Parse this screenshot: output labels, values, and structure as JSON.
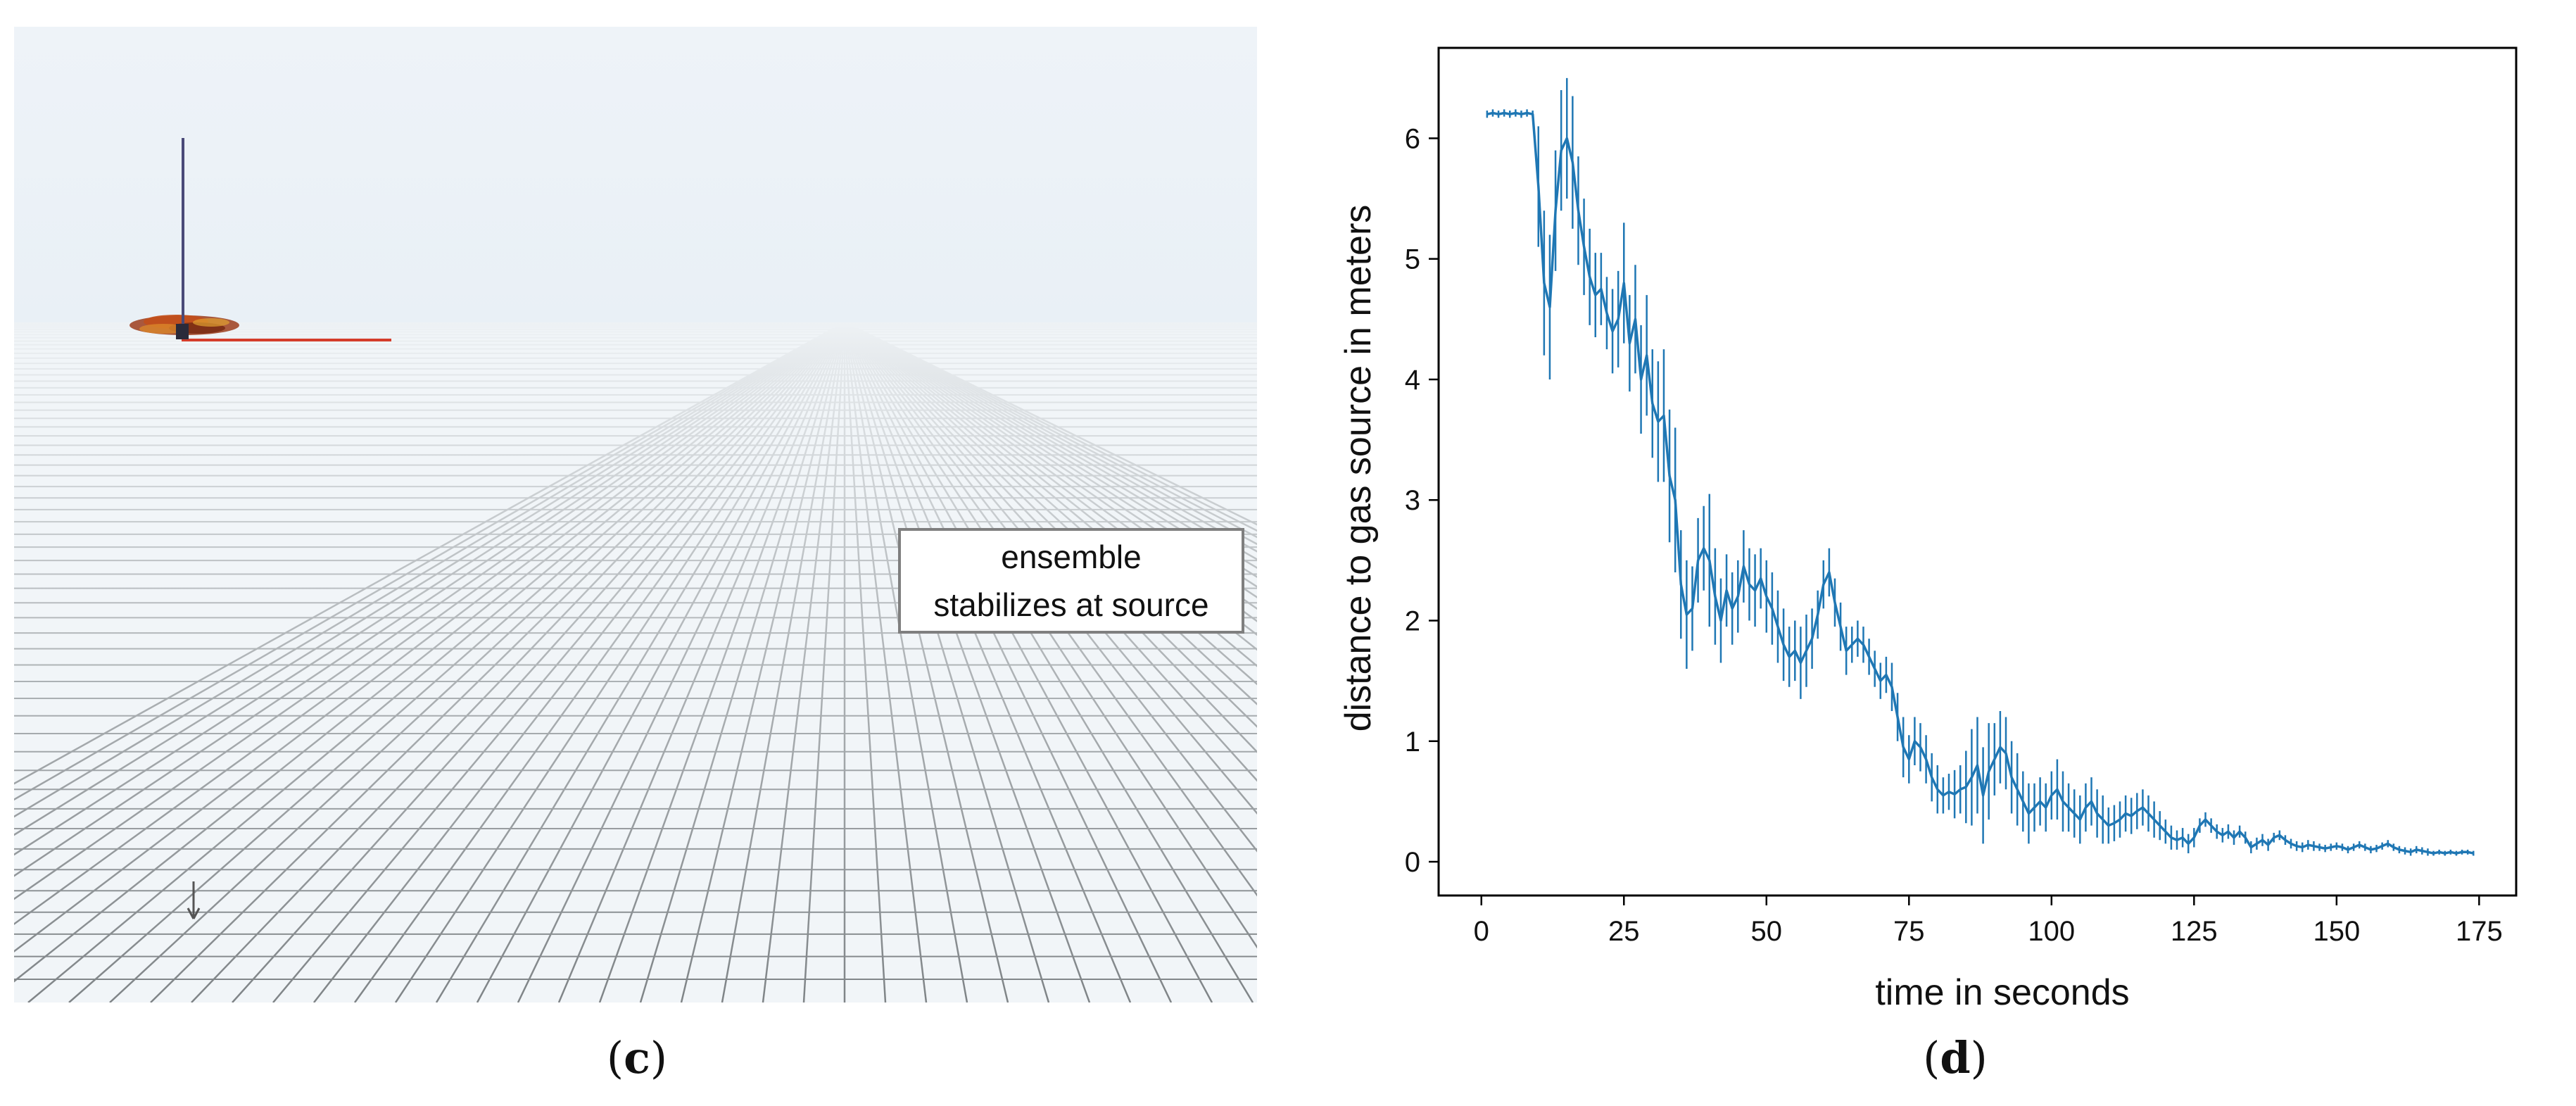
{
  "panel_c": {
    "label_open": "(",
    "label_letter": "c",
    "label_close": ")",
    "annotation_lines": [
      "ensemble",
      "stabilizes at source"
    ],
    "colors": {
      "sky": "#eef3f8",
      "floor": "#f1f5f8",
      "grid": "#7f8487",
      "pole": "#4a4a78",
      "axis_red": "#d43c2a",
      "swarm": "#b0401a"
    }
  },
  "panel_d": {
    "label_open": "(",
    "label_letter": "d",
    "label_close": ")"
  },
  "chart_data": {
    "type": "line",
    "title": "",
    "xlabel": "time in seconds",
    "ylabel": "distance to gas source in meters",
    "xlim": [
      -7.5,
      181.5
    ],
    "ylim": [
      -0.28,
      6.75
    ],
    "xticks": [
      0,
      25,
      50,
      75,
      100,
      125,
      150,
      175
    ],
    "yticks": [
      0,
      1,
      2,
      3,
      4,
      5,
      6
    ],
    "grid": false,
    "legend": "none",
    "error_bars": true,
    "color": "#1f77b4",
    "series": [
      {
        "x": [
          1,
          2,
          3,
          4,
          5,
          6,
          7,
          8,
          9,
          10,
          11,
          12,
          13,
          14,
          15,
          16,
          17,
          18,
          19,
          20,
          21,
          22,
          23,
          24,
          25,
          26,
          27,
          28,
          29,
          30,
          31,
          32,
          33,
          34,
          35,
          36,
          37,
          38,
          39,
          40,
          41,
          42,
          43,
          44,
          45,
          46,
          47,
          48,
          49,
          50,
          51,
          52,
          53,
          54,
          55,
          56,
          57,
          58,
          59,
          60,
          61,
          62,
          63,
          64,
          65,
          66,
          67,
          68,
          69,
          70,
          71,
          72,
          73,
          74,
          75,
          76,
          77,
          78,
          79,
          80,
          81,
          82,
          83,
          84,
          85,
          86,
          87,
          88,
          89,
          90,
          91,
          92,
          93,
          94,
          95,
          96,
          97,
          98,
          99,
          100,
          101,
          102,
          103,
          104,
          105,
          106,
          107,
          108,
          109,
          110,
          111,
          112,
          113,
          114,
          115,
          116,
          117,
          118,
          119,
          120,
          121,
          122,
          123,
          124,
          125,
          126,
          127,
          128,
          129,
          130,
          131,
          132,
          133,
          134,
          135,
          136,
          137,
          138,
          139,
          140,
          141,
          142,
          143,
          144,
          145,
          146,
          147,
          148,
          149,
          150,
          151,
          152,
          153,
          154,
          155,
          156,
          157,
          158,
          159,
          160,
          161,
          162,
          163,
          164,
          165,
          166,
          167,
          168,
          169,
          170,
          171,
          172,
          173,
          174
        ],
        "y": [
          6.2,
          6.21,
          6.2,
          6.21,
          6.2,
          6.21,
          6.2,
          6.21,
          6.2,
          5.6,
          4.8,
          4.6,
          5.4,
          5.9,
          6.0,
          5.8,
          5.4,
          5.1,
          4.85,
          4.7,
          4.75,
          4.55,
          4.4,
          4.5,
          4.8,
          4.3,
          4.5,
          4.0,
          4.2,
          3.8,
          3.65,
          3.7,
          3.2,
          3.0,
          2.3,
          2.05,
          2.1,
          2.5,
          2.6,
          2.5,
          2.2,
          2.0,
          2.25,
          2.1,
          2.2,
          2.45,
          2.3,
          2.25,
          2.35,
          2.2,
          2.1,
          1.95,
          1.8,
          1.7,
          1.75,
          1.65,
          1.75,
          1.85,
          2.05,
          2.3,
          2.4,
          2.15,
          1.95,
          1.75,
          1.8,
          1.85,
          1.8,
          1.7,
          1.6,
          1.5,
          1.55,
          1.45,
          1.2,
          0.95,
          0.85,
          1.0,
          0.95,
          0.85,
          0.7,
          0.6,
          0.55,
          0.58,
          0.56,
          0.6,
          0.62,
          0.7,
          0.8,
          0.55,
          0.75,
          0.85,
          0.95,
          0.9,
          0.7,
          0.6,
          0.5,
          0.4,
          0.45,
          0.5,
          0.45,
          0.55,
          0.6,
          0.5,
          0.45,
          0.4,
          0.35,
          0.45,
          0.5,
          0.4,
          0.35,
          0.3,
          0.32,
          0.35,
          0.4,
          0.38,
          0.42,
          0.45,
          0.4,
          0.35,
          0.3,
          0.25,
          0.2,
          0.18,
          0.2,
          0.15,
          0.2,
          0.3,
          0.35,
          0.3,
          0.25,
          0.22,
          0.25,
          0.2,
          0.25,
          0.2,
          0.12,
          0.15,
          0.18,
          0.14,
          0.2,
          0.22,
          0.18,
          0.15,
          0.13,
          0.12,
          0.14,
          0.13,
          0.12,
          0.11,
          0.12,
          0.13,
          0.12,
          0.1,
          0.12,
          0.14,
          0.12,
          0.1,
          0.11,
          0.13,
          0.15,
          0.12,
          0.1,
          0.09,
          0.08,
          0.1,
          0.09,
          0.08,
          0.07,
          0.08,
          0.07,
          0.08,
          0.07,
          0.08,
          0.08,
          0.07
        ],
        "err": [
          0.03,
          0.03,
          0.03,
          0.03,
          0.03,
          0.03,
          0.03,
          0.03,
          0.03,
          0.5,
          0.6,
          0.6,
          0.5,
          0.5,
          0.5,
          0.55,
          0.45,
          0.4,
          0.4,
          0.35,
          0.3,
          0.3,
          0.35,
          0.4,
          0.5,
          0.4,
          0.45,
          0.45,
          0.5,
          0.45,
          0.5,
          0.55,
          0.55,
          0.6,
          0.45,
          0.45,
          0.35,
          0.35,
          0.35,
          0.55,
          0.4,
          0.35,
          0.3,
          0.3,
          0.3,
          0.3,
          0.3,
          0.3,
          0.25,
          0.3,
          0.3,
          0.3,
          0.3,
          0.25,
          0.25,
          0.3,
          0.3,
          0.25,
          0.2,
          0.2,
          0.2,
          0.2,
          0.2,
          0.2,
          0.15,
          0.15,
          0.15,
          0.15,
          0.15,
          0.15,
          0.15,
          0.2,
          0.2,
          0.25,
          0.2,
          0.2,
          0.2,
          0.2,
          0.2,
          0.2,
          0.15,
          0.15,
          0.2,
          0.2,
          0.3,
          0.4,
          0.4,
          0.4,
          0.4,
          0.3,
          0.3,
          0.3,
          0.3,
          0.3,
          0.25,
          0.25,
          0.2,
          0.2,
          0.2,
          0.2,
          0.25,
          0.25,
          0.2,
          0.2,
          0.2,
          0.2,
          0.2,
          0.2,
          0.2,
          0.15,
          0.15,
          0.15,
          0.15,
          0.15,
          0.15,
          0.15,
          0.15,
          0.15,
          0.12,
          0.1,
          0.1,
          0.08,
          0.08,
          0.08,
          0.08,
          0.06,
          0.06,
          0.06,
          0.06,
          0.06,
          0.06,
          0.06,
          0.05,
          0.05,
          0.05,
          0.05,
          0.05,
          0.05,
          0.04,
          0.04,
          0.04,
          0.04,
          0.04,
          0.04,
          0.04,
          0.04,
          0.03,
          0.03,
          0.03,
          0.03,
          0.03,
          0.03,
          0.03,
          0.03,
          0.03,
          0.03,
          0.03,
          0.03,
          0.03,
          0.03,
          0.03,
          0.03,
          0.03,
          0.03,
          0.03,
          0.03,
          0.02,
          0.02,
          0.02,
          0.02,
          0.02,
          0.02,
          0.02,
          0.02
        ]
      }
    ]
  }
}
